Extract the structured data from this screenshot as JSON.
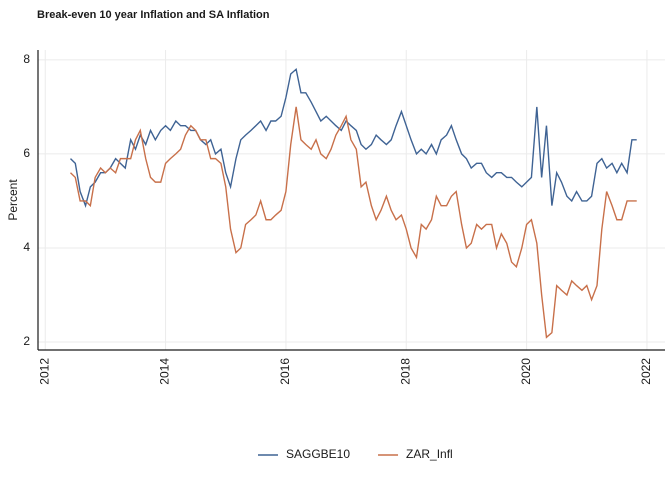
{
  "chart_data": {
    "type": "line",
    "title": "Break-even 10 year Inflation and SA Inflation",
    "y_label": "Percent",
    "xlim": [
      2011.88,
      2022.3
    ],
    "xticks": [
      2012,
      2014,
      2016,
      2018,
      2020,
      2022
    ],
    "ylim": [
      1.83,
      8.21
    ],
    "yticks": [
      2,
      4,
      6,
      8
    ],
    "grid": true,
    "legend": "bottom",
    "x": [
      2012.42,
      2012.5,
      2012.58,
      2012.67,
      2012.75,
      2012.83,
      2012.92,
      2013.0,
      2013.08,
      2013.17,
      2013.25,
      2013.33,
      2013.42,
      2013.5,
      2013.58,
      2013.67,
      2013.75,
      2013.83,
      2013.92,
      2014.0,
      2014.08,
      2014.17,
      2014.25,
      2014.33,
      2014.42,
      2014.5,
      2014.58,
      2014.67,
      2014.75,
      2014.83,
      2014.92,
      2015.0,
      2015.08,
      2015.17,
      2015.25,
      2015.33,
      2015.42,
      2015.5,
      2015.58,
      2015.67,
      2015.75,
      2015.83,
      2015.92,
      2016.0,
      2016.08,
      2016.17,
      2016.25,
      2016.33,
      2016.42,
      2016.5,
      2016.58,
      2016.67,
      2016.75,
      2016.83,
      2016.92,
      2017.0,
      2017.08,
      2017.17,
      2017.25,
      2017.33,
      2017.42,
      2017.5,
      2017.58,
      2017.67,
      2017.75,
      2017.83,
      2017.92,
      2018.0,
      2018.08,
      2018.17,
      2018.25,
      2018.33,
      2018.42,
      2018.5,
      2018.58,
      2018.67,
      2018.75,
      2018.83,
      2018.92,
      2019.0,
      2019.08,
      2019.17,
      2019.25,
      2019.33,
      2019.42,
      2019.5,
      2019.58,
      2019.67,
      2019.75,
      2019.83,
      2019.92,
      2020.0,
      2020.08,
      2020.17,
      2020.25,
      2020.33,
      2020.42,
      2020.5,
      2020.58,
      2020.67,
      2020.75,
      2020.83,
      2020.92,
      2021.0,
      2021.08,
      2021.17,
      2021.25,
      2021.33,
      2021.42,
      2021.5,
      2021.58,
      2021.67,
      2021.75,
      2021.83
    ],
    "series": [
      {
        "name": "SAGGBE10",
        "color": "#3f6394",
        "values": [
          5.9,
          5.8,
          5.2,
          4.9,
          5.3,
          5.4,
          5.6,
          5.6,
          5.7,
          5.9,
          5.8,
          5.7,
          6.3,
          6.1,
          6.4,
          6.2,
          6.5,
          6.3,
          6.5,
          6.6,
          6.5,
          6.7,
          6.6,
          6.6,
          6.5,
          6.5,
          6.3,
          6.2,
          6.3,
          6.0,
          6.1,
          5.6,
          5.3,
          5.9,
          6.3,
          6.4,
          6.5,
          6.6,
          6.7,
          6.5,
          6.7,
          6.7,
          6.8,
          7.2,
          7.7,
          7.8,
          7.3,
          7.3,
          7.1,
          6.9,
          6.7,
          6.8,
          6.7,
          6.6,
          6.5,
          6.7,
          6.6,
          6.5,
          6.2,
          6.1,
          6.2,
          6.4,
          6.3,
          6.2,
          6.3,
          6.6,
          6.9,
          6.6,
          6.3,
          6.0,
          6.1,
          6.0,
          6.2,
          6.0,
          6.3,
          6.4,
          6.6,
          6.3,
          6.0,
          5.9,
          5.7,
          5.8,
          5.8,
          5.6,
          5.5,
          5.6,
          5.6,
          5.5,
          5.5,
          5.4,
          5.3,
          5.4,
          5.5,
          7.0,
          5.5,
          6.6,
          4.9,
          5.6,
          5.4,
          5.1,
          5.0,
          5.2,
          5.0,
          5.0,
          5.1,
          5.8,
          5.9,
          5.7,
          5.8,
          5.6,
          5.8,
          5.6,
          6.3,
          6.3
        ]
      },
      {
        "name": "ZAR_Infl",
        "color": "#c8704a",
        "values": [
          5.6,
          5.5,
          5.0,
          5.0,
          4.9,
          5.5,
          5.7,
          5.6,
          5.7,
          5.6,
          5.9,
          5.9,
          5.9,
          6.3,
          6.5,
          5.9,
          5.5,
          5.4,
          5.4,
          5.8,
          5.9,
          6.0,
          6.1,
          6.4,
          6.6,
          6.5,
          6.3,
          6.3,
          5.9,
          5.9,
          5.8,
          5.3,
          4.4,
          3.9,
          4.0,
          4.5,
          4.6,
          4.7,
          5.0,
          4.6,
          4.6,
          4.7,
          4.8,
          5.2,
          6.2,
          7.0,
          6.3,
          6.2,
          6.1,
          6.3,
          6.0,
          5.9,
          6.1,
          6.4,
          6.6,
          6.8,
          6.3,
          6.1,
          5.3,
          5.4,
          4.9,
          4.6,
          4.8,
          5.1,
          4.8,
          4.6,
          4.7,
          4.4,
          4.0,
          3.8,
          4.5,
          4.4,
          4.6,
          5.1,
          4.9,
          4.9,
          5.1,
          5.2,
          4.5,
          4.0,
          4.1,
          4.5,
          4.4,
          4.5,
          4.5,
          4.0,
          4.3,
          4.1,
          3.7,
          3.6,
          4.0,
          4.5,
          4.6,
          4.1,
          3.0,
          2.1,
          2.2,
          3.2,
          3.1,
          3.0,
          3.3,
          3.2,
          3.1,
          3.2,
          2.9,
          3.2,
          4.4,
          5.2,
          4.9,
          4.6,
          4.6,
          5.0,
          5.0,
          5.0
        ]
      }
    ]
  }
}
